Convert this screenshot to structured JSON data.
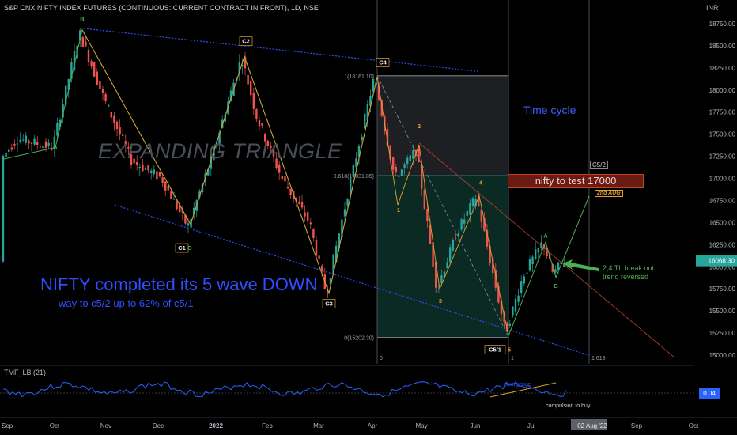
{
  "title": "S&P CNX NIFTY INDEX FUTURES (CONTINUOUS: CURRENT CONTRACT IN FRONT), 1D, NSE",
  "currency": "INR",
  "indicator_label": "TMF_LB (21)",
  "annotations": {
    "watermark": "EXPANDING TRIANGLE",
    "headline": "NIFTY completed its 5 wave DOWN",
    "subline": "way to c5/2 up to 62% of c5/1",
    "time_cycle": "Time cycle",
    "target": "nifty to test 17000",
    "target_date": "2nd AUG",
    "c52": "C5/2",
    "tl_note_1": "2,4 TL break out",
    "tl_note_2": "trend reversed",
    "divergence": "divergence",
    "compulsion": "compulsion to buy"
  },
  "colors": {
    "up": "#26a69a",
    "down": "#ef5350",
    "wave_green": "#4caf50",
    "wave_orange": "#e0a030",
    "trendline_blue": "#2f4fff",
    "fib_zone_top": "#1e1f23",
    "fib_zone_bottom": "#0c2a24",
    "fib_line": "#26a69a",
    "target_fill": "#6a1c14",
    "price_tag": "#26a69a",
    "oscillator": "#2962ff",
    "oscillator_tag": "#2962ff"
  },
  "chart_data": {
    "type": "candlestick",
    "symbol": "S&P CNX NIFTY INDEX FUTURES (CONTINUOUS: CURRENT CONTRACT IN FRONT)",
    "interval": "1D",
    "exchange": "NSE",
    "y_axis": {
      "ticks": [
        15000,
        15250,
        15500,
        15750,
        16000,
        16250,
        16500,
        16750,
        17000,
        17250,
        17500,
        17750,
        18000,
        18250,
        18500,
        18750
      ],
      "tick_labels": [
        "15000.00",
        "15250.00",
        "15500.00",
        "15750.00",
        "16000.00",
        "16250.00",
        "16500.00",
        "16750.00",
        "17000.00",
        "17250.00",
        "17500.00",
        "17750.00",
        "18000.00",
        "18250.00",
        "18500.00",
        "18750.00"
      ],
      "ylim": [
        14980,
        18950
      ]
    },
    "x_axis": {
      "tick_labels": [
        "Sep",
        "Oct",
        "Nov",
        "Dec",
        "2022",
        "Feb",
        "Mar",
        "Apr",
        "May",
        "Jun",
        "Jul",
        "02 Aug '22",
        "Sep",
        "Oct"
      ]
    },
    "last_price": "16068.30",
    "fibonacci": {
      "levels": [
        {
          "ratio": "1",
          "price": 18161.1,
          "label": "1(18161.10)"
        },
        {
          "ratio": "0.618",
          "price": 17031.85,
          "label": "0.618(17031.85)"
        },
        {
          "ratio": "0",
          "price": 15202.3,
          "label": "0(15202.30)"
        }
      ],
      "time_labels": [
        "0",
        "1",
        "1.618"
      ]
    },
    "wave_labels": [
      {
        "text": "B",
        "price": 18780
      },
      {
        "text": "A",
        "price": 17330
      },
      {
        "text": "C2",
        "price": 18530
      },
      {
        "text": "C1",
        "price": 16190
      },
      {
        "text": "C",
        "price": 16190
      },
      {
        "text": "C3",
        "price": 15560
      },
      {
        "text": "C4",
        "price": 18290
      },
      {
        "text": "1",
        "price": 16620
      },
      {
        "text": "2",
        "price": 17570
      },
      {
        "text": "3",
        "price": 15590
      },
      {
        "text": "4",
        "price": 16930
      },
      {
        "text": "5",
        "price": 15040
      },
      {
        "text": "C5/1",
        "price": 15040
      },
      {
        "text": "A",
        "price": 16330
      },
      {
        "text": "B",
        "price": 15760
      }
    ],
    "oscillator": {
      "name": "TMF_LB (21)",
      "last_value": "0.04"
    }
  }
}
